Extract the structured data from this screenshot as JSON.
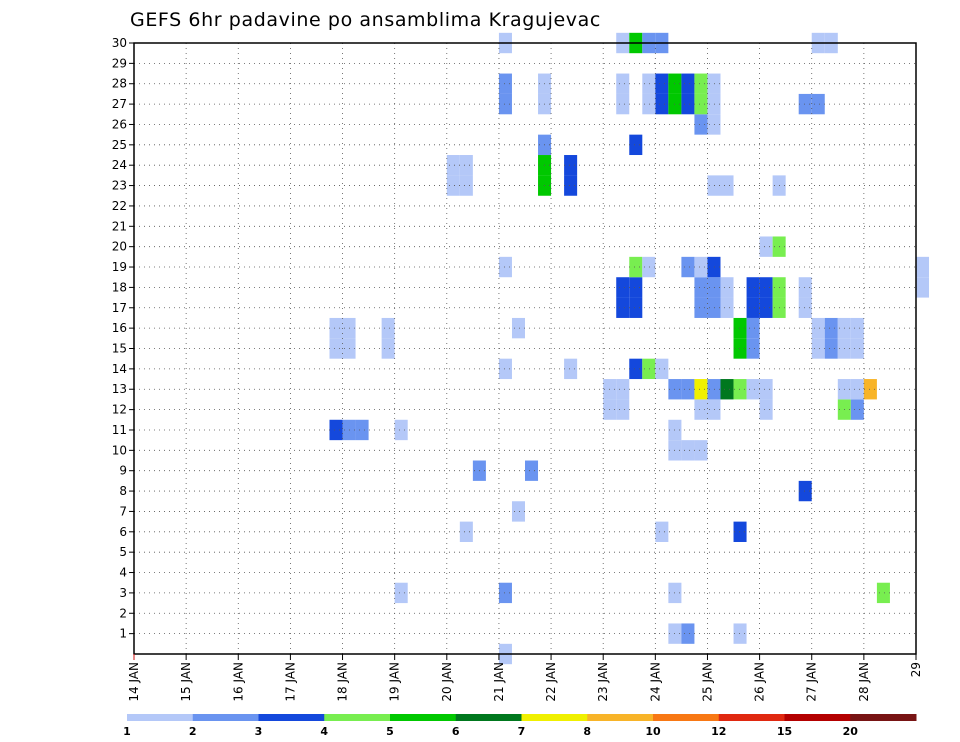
{
  "chart_data": {
    "type": "heatmap",
    "title": "GEFS 6hr padavine po ansamblima Kragujevac",
    "y_ticks": [
      "1",
      "2",
      "3",
      "4",
      "5",
      "6",
      "7",
      "8",
      "9",
      "10",
      "11",
      "12",
      "13",
      "14",
      "15",
      "16",
      "17",
      "18",
      "19",
      "20",
      "21",
      "22",
      "23",
      "24",
      "25",
      "26",
      "27",
      "28",
      "29",
      "30"
    ],
    "x_ticks": [
      "14 JAN",
      "15 JAN",
      "16 JAN",
      "17 JAN",
      "18 JAN",
      "19 JAN",
      "20 JAN",
      "21 JAN",
      "22 JAN",
      "23 JAN",
      "24 JAN",
      "25 JAN",
      "26 JAN",
      "27 JAN",
      "28 JAN",
      "29"
    ],
    "x_start_day": 14,
    "steps_per_day": 4,
    "y_range": [
      0,
      30
    ],
    "legend_labels": [
      "1",
      "2",
      "3",
      "4",
      "5",
      "6",
      "7",
      "8",
      "10",
      "12",
      "15",
      "20"
    ],
    "legend_colors": [
      "#b4c8f8",
      "#6a94f0",
      "#1448dc",
      "#78ee50",
      "#00c800",
      "#00781e",
      "#f0f000",
      "#f8b428",
      "#f87814",
      "#e02810",
      "#b40000",
      "#781414"
    ],
    "cell_level_colors": [
      "#b4c8f8",
      "#6a94f0",
      "#1448dc",
      "#78ee50",
      "#00c800",
      "#00781e",
      "#f0f000",
      "#f8b428"
    ],
    "cells": [
      [
        21.0,
        0,
        0
      ],
      [
        24.25,
        1,
        0
      ],
      [
        24.5,
        1,
        1
      ],
      [
        25.5,
        1,
        0
      ],
      [
        19.0,
        3,
        0
      ],
      [
        21.0,
        3,
        1
      ],
      [
        24.25,
        3,
        0
      ],
      [
        28.25,
        3,
        3
      ],
      [
        20.25,
        6,
        0
      ],
      [
        24.0,
        6,
        0
      ],
      [
        25.5,
        6,
        2
      ],
      [
        21.25,
        7,
        0
      ],
      [
        26.75,
        8,
        2
      ],
      [
        20.5,
        9,
        1
      ],
      [
        21.5,
        9,
        1
      ],
      [
        24.25,
        10,
        0
      ],
      [
        24.5,
        10,
        0
      ],
      [
        24.75,
        10,
        0
      ],
      [
        17.75,
        11,
        2
      ],
      [
        18.0,
        11,
        1
      ],
      [
        18.25,
        11,
        1
      ],
      [
        19.0,
        11,
        0
      ],
      [
        24.25,
        11,
        0
      ],
      [
        23.0,
        12,
        0
      ],
      [
        23.25,
        12,
        0
      ],
      [
        24.75,
        12,
        0
      ],
      [
        25.0,
        12,
        0
      ],
      [
        26.0,
        12,
        0
      ],
      [
        27.5,
        12,
        3
      ],
      [
        27.75,
        12,
        1
      ],
      [
        23.0,
        13,
        0
      ],
      [
        23.25,
        13,
        0
      ],
      [
        24.25,
        13,
        1
      ],
      [
        24.5,
        13,
        1
      ],
      [
        24.75,
        13,
        6
      ],
      [
        25.0,
        13,
        1
      ],
      [
        25.25,
        13,
        5
      ],
      [
        25.5,
        13,
        3
      ],
      [
        25.75,
        13,
        0
      ],
      [
        26.0,
        13,
        0
      ],
      [
        27.5,
        13,
        0
      ],
      [
        27.75,
        13,
        0
      ],
      [
        28.0,
        13,
        7
      ],
      [
        21.0,
        14,
        0
      ],
      [
        22.25,
        14,
        0
      ],
      [
        23.5,
        14,
        2
      ],
      [
        23.75,
        14,
        3
      ],
      [
        24.0,
        14,
        0
      ],
      [
        17.75,
        15,
        0
      ],
      [
        18.0,
        15,
        0
      ],
      [
        18.75,
        15,
        0
      ],
      [
        25.5,
        15,
        4
      ],
      [
        25.75,
        15,
        1
      ],
      [
        27.0,
        15,
        0
      ],
      [
        27.25,
        15,
        1
      ],
      [
        27.5,
        15,
        0
      ],
      [
        27.75,
        15,
        0
      ],
      [
        17.75,
        16,
        0
      ],
      [
        18.0,
        16,
        0
      ],
      [
        18.75,
        16,
        0
      ],
      [
        21.25,
        16,
        0
      ],
      [
        25.5,
        16,
        4
      ],
      [
        25.75,
        16,
        1
      ],
      [
        27.0,
        16,
        0
      ],
      [
        27.25,
        16,
        1
      ],
      [
        27.5,
        16,
        0
      ],
      [
        27.75,
        16,
        0
      ],
      [
        23.25,
        17,
        2
      ],
      [
        23.5,
        17,
        2
      ],
      [
        24.75,
        17,
        1
      ],
      [
        25.0,
        17,
        1
      ],
      [
        25.25,
        17,
        0
      ],
      [
        25.75,
        17,
        2
      ],
      [
        26.0,
        17,
        2
      ],
      [
        26.25,
        17,
        3
      ],
      [
        26.75,
        17,
        0
      ],
      [
        23.25,
        18,
        2
      ],
      [
        23.5,
        18,
        2
      ],
      [
        24.75,
        18,
        1
      ],
      [
        25.0,
        18,
        1
      ],
      [
        25.25,
        18,
        0
      ],
      [
        25.75,
        18,
        2
      ],
      [
        26.0,
        18,
        2
      ],
      [
        26.25,
        18,
        3
      ],
      [
        26.75,
        18,
        0
      ],
      [
        29.0,
        18,
        0
      ],
      [
        21.0,
        19,
        0
      ],
      [
        23.5,
        19,
        3
      ],
      [
        23.75,
        19,
        0
      ],
      [
        24.5,
        19,
        1
      ],
      [
        24.75,
        19,
        0
      ],
      [
        25.0,
        19,
        2
      ],
      [
        29.0,
        19,
        0
      ],
      [
        26.0,
        20,
        0
      ],
      [
        26.25,
        20,
        3
      ],
      [
        25.0,
        23,
        0
      ],
      [
        25.25,
        23,
        0
      ],
      [
        26.25,
        23,
        0
      ],
      [
        20.0,
        24,
        0
      ],
      [
        20.25,
        24,
        0
      ],
      [
        21.75,
        24,
        4
      ],
      [
        22.25,
        24,
        2
      ],
      [
        21.75,
        25,
        1
      ],
      [
        23.5,
        25,
        2
      ],
      [
        24.75,
        26,
        1
      ],
      [
        25.0,
        26,
        0
      ],
      [
        26.75,
        27,
        1
      ],
      [
        27.0,
        27,
        1
      ],
      [
        21.0,
        28,
        1
      ],
      [
        21.75,
        28,
        0
      ],
      [
        23.25,
        28,
        0
      ],
      [
        23.75,
        28,
        0
      ],
      [
        24.0,
        28,
        2
      ],
      [
        24.25,
        28,
        4
      ],
      [
        24.5,
        28,
        2
      ],
      [
        24.75,
        28,
        3
      ],
      [
        25.0,
        28,
        0
      ],
      [
        20.0,
        23,
        0
      ],
      [
        20.25,
        23,
        0
      ],
      [
        21.75,
        23,
        4
      ],
      [
        22.25,
        23,
        2
      ],
      [
        24.0,
        27,
        2
      ],
      [
        24.25,
        27,
        4
      ],
      [
        24.5,
        27,
        2
      ],
      [
        24.75,
        27,
        3
      ],
      [
        25.0,
        27,
        0
      ],
      [
        21.0,
        27,
        1
      ],
      [
        21.75,
        27,
        0
      ],
      [
        23.25,
        27,
        0
      ],
      [
        23.75,
        27,
        0
      ],
      [
        21.0,
        30,
        0
      ],
      [
        23.25,
        30,
        0
      ],
      [
        23.5,
        30,
        4
      ],
      [
        23.75,
        30,
        1
      ],
      [
        24.0,
        30,
        1
      ],
      [
        27.0,
        30,
        0
      ],
      [
        27.25,
        30,
        0
      ]
    ]
  }
}
